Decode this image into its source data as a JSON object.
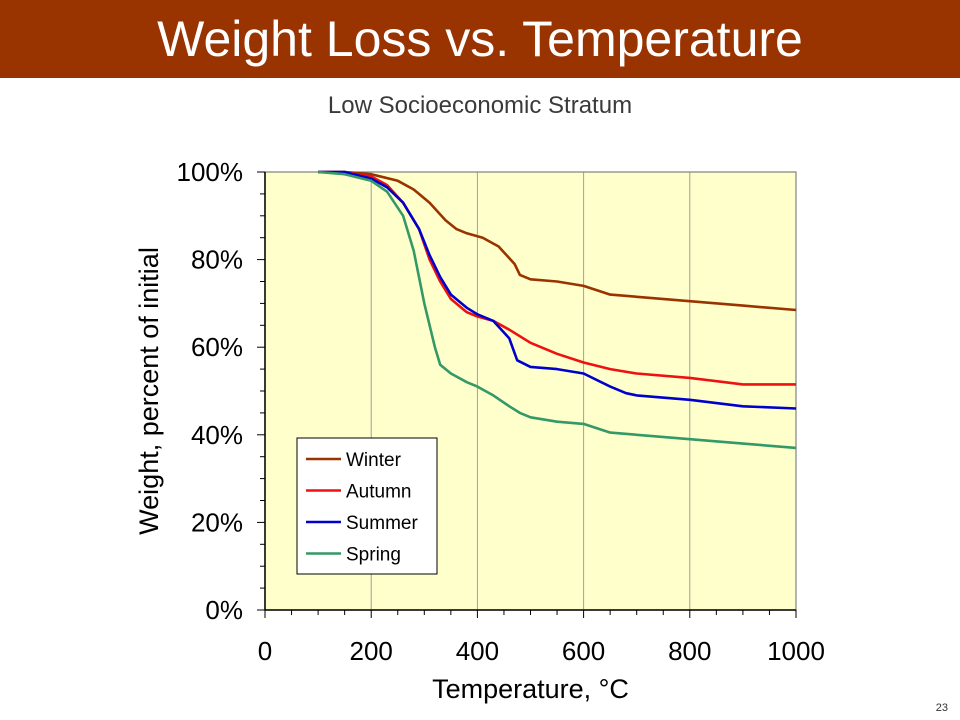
{
  "slide": {
    "title": "Weight Loss vs. Temperature",
    "page_number": "23",
    "title_bar_color": "#993300"
  },
  "chart_data": {
    "type": "line",
    "title": "Low Socioeconomic Stratum",
    "xlabel": "Temperature, °C",
    "ylabel": "Weight, percent of initial",
    "xlim": [
      0,
      1000
    ],
    "ylim": [
      0,
      100
    ],
    "x_ticks": [
      0,
      200,
      400,
      600,
      800,
      1000
    ],
    "x_tick_labels": [
      "0",
      "200",
      "400",
      "600",
      "800",
      "1000"
    ],
    "y_ticks": [
      0,
      20,
      40,
      60,
      80,
      100
    ],
    "y_tick_labels": [
      "0%",
      "20%",
      "40%",
      "60%",
      "80%",
      "100%"
    ],
    "grid": "vertical",
    "plot_background": "#ffffcc",
    "legend_position": "bottom-left",
    "series": [
      {
        "name": "Winter",
        "color": "#993300",
        "x": [
          100,
          150,
          200,
          250,
          280,
          310,
          340,
          360,
          380,
          410,
          440,
          470,
          480,
          500,
          550,
          600,
          650,
          700,
          800,
          900,
          1000
        ],
        "y": [
          100,
          100,
          99.5,
          98,
          96,
          93,
          89,
          87,
          86,
          85,
          83,
          79,
          76.5,
          75.5,
          75,
          74,
          72,
          71.5,
          70.5,
          69.5,
          68.5
        ]
      },
      {
        "name": "Autumn",
        "color": "#ee1111",
        "x": [
          100,
          150,
          200,
          230,
          260,
          290,
          310,
          330,
          350,
          380,
          400,
          430,
          460,
          500,
          550,
          600,
          650,
          700,
          800,
          900,
          1000
        ],
        "y": [
          100,
          100,
          99,
          97,
          93,
          87,
          80,
          75,
          71,
          68,
          67,
          66,
          64,
          61,
          58.5,
          56.5,
          55,
          54,
          53,
          51.5,
          51.5
        ]
      },
      {
        "name": "Summer",
        "color": "#0000cc",
        "x": [
          100,
          150,
          200,
          230,
          260,
          290,
          310,
          330,
          350,
          380,
          400,
          430,
          460,
          475,
          500,
          550,
          600,
          650,
          680,
          700,
          800,
          900,
          1000
        ],
        "y": [
          100,
          100,
          98.5,
          96.5,
          93,
          87,
          81,
          76,
          72,
          69,
          67.5,
          66,
          62,
          57,
          55.5,
          55,
          54,
          51,
          49.5,
          49,
          48,
          46.5,
          46
        ]
      },
      {
        "name": "Spring",
        "color": "#339966",
        "x": [
          100,
          150,
          200,
          230,
          260,
          280,
          300,
          320,
          330,
          350,
          380,
          400,
          430,
          460,
          480,
          500,
          550,
          600,
          650,
          700,
          800,
          900,
          1000
        ],
        "y": [
          100,
          99.5,
          98,
          95.5,
          90,
          82,
          70,
          60,
          56,
          54,
          52,
          51,
          49,
          46.5,
          45,
          44,
          43,
          42.5,
          40.5,
          40,
          39,
          38,
          37
        ]
      }
    ]
  }
}
